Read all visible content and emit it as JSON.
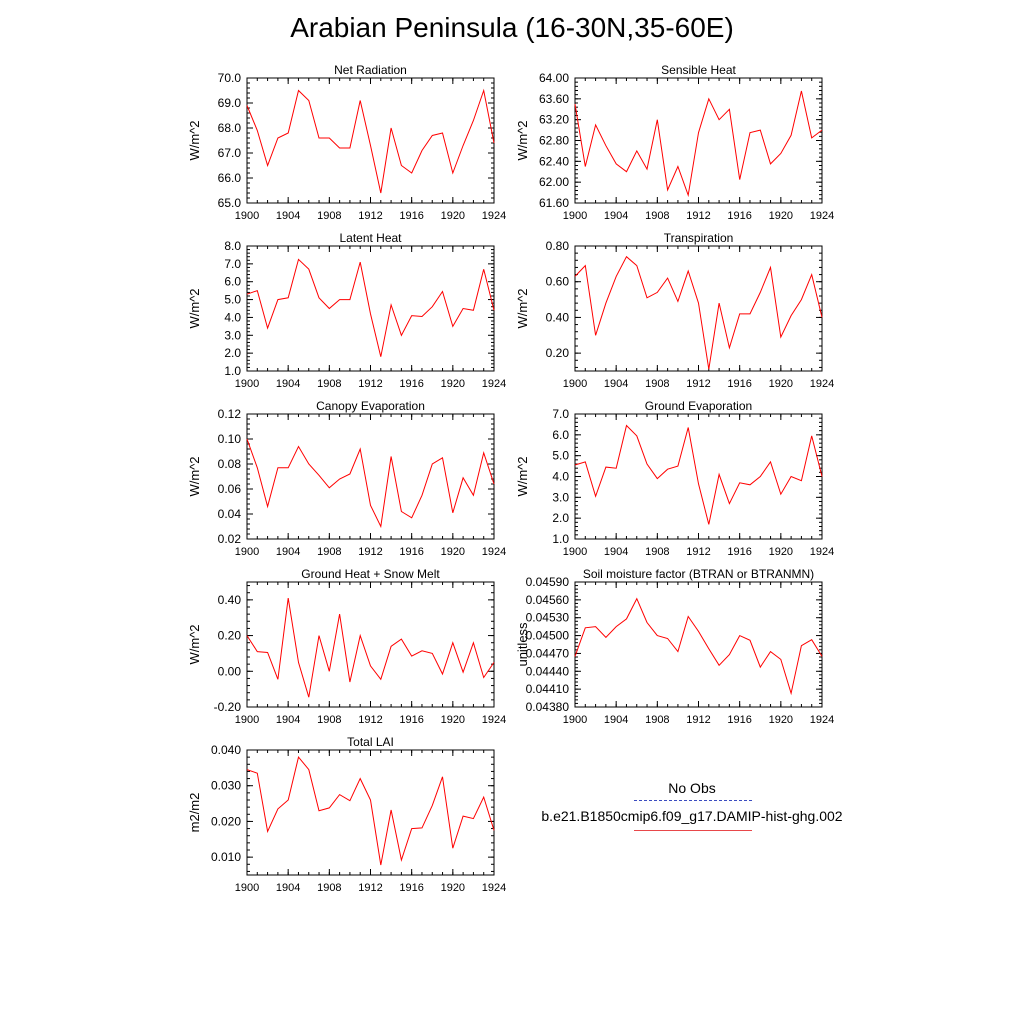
{
  "title": "Arabian Peninsula (16-30N,35-60E)",
  "legend": {
    "obs_label": "No Obs",
    "model_label": "b.e21.B1850cmip6.f09_g17.DAMIP-hist-ghg.002",
    "obs_color": "#3b4cc0",
    "model_color": "#ff0000"
  },
  "chart_data": [
    {
      "type": "line",
      "title": "Net Radiation",
      "ylabel": "W/m^2",
      "xlim": [
        1900,
        1924
      ],
      "ylim": [
        65.0,
        70.0
      ],
      "xticks": [
        1900,
        1904,
        1908,
        1912,
        1916,
        1920,
        1924
      ],
      "yticks": [
        "65.0",
        "66.0",
        "67.0",
        "68.0",
        "69.0",
        "70.0"
      ],
      "ytick_values": [
        65.0,
        66.0,
        67.0,
        68.0,
        69.0,
        70.0
      ],
      "x": [
        1900,
        1901,
        1902,
        1903,
        1904,
        1905,
        1906,
        1907,
        1908,
        1909,
        1910,
        1911,
        1912,
        1913,
        1914,
        1915,
        1916,
        1917,
        1918,
        1919,
        1920,
        1921,
        1922,
        1923,
        1924
      ],
      "series": [
        {
          "values": [
            68.9,
            67.9,
            66.5,
            67.6,
            67.8,
            69.5,
            69.1,
            67.6,
            67.6,
            67.2,
            67.2,
            69.1,
            67.3,
            65.4,
            68.0,
            66.5,
            66.2,
            67.1,
            67.7,
            67.8,
            66.2,
            67.3,
            68.3,
            69.5,
            67.4
          ]
        }
      ]
    },
    {
      "type": "line",
      "title": "Sensible Heat",
      "ylabel": "W/m^2",
      "xlim": [
        1900,
        1924
      ],
      "ylim": [
        61.6,
        64.0
      ],
      "xticks": [
        1900,
        1904,
        1908,
        1912,
        1916,
        1920,
        1924
      ],
      "yticks": [
        "61.60",
        "62.00",
        "62.40",
        "62.80",
        "63.20",
        "63.60",
        "64.00"
      ],
      "ytick_values": [
        61.6,
        62.0,
        62.4,
        62.8,
        63.2,
        63.6,
        64.0
      ],
      "x": [
        1900,
        1901,
        1902,
        1903,
        1904,
        1905,
        1906,
        1907,
        1908,
        1909,
        1910,
        1911,
        1912,
        1913,
        1914,
        1915,
        1916,
        1917,
        1918,
        1919,
        1920,
        1921,
        1922,
        1923,
        1924
      ],
      "series": [
        {
          "values": [
            63.5,
            62.3,
            63.1,
            62.7,
            62.35,
            62.2,
            62.6,
            62.25,
            63.2,
            61.85,
            62.3,
            61.75,
            62.95,
            63.6,
            63.2,
            63.4,
            62.05,
            62.95,
            63.0,
            62.35,
            62.55,
            62.9,
            63.75,
            62.85,
            63.0
          ]
        }
      ]
    },
    {
      "type": "line",
      "title": "Latent Heat",
      "ylabel": "W/m^2",
      "xlim": [
        1900,
        1924
      ],
      "ylim": [
        1.0,
        8.0
      ],
      "xticks": [
        1900,
        1904,
        1908,
        1912,
        1916,
        1920,
        1924
      ],
      "yticks": [
        "1.0",
        "2.0",
        "3.0",
        "4.0",
        "5.0",
        "6.0",
        "7.0",
        "8.0"
      ],
      "ytick_values": [
        1.0,
        2.0,
        3.0,
        4.0,
        5.0,
        6.0,
        7.0,
        8.0
      ],
      "x": [
        1900,
        1901,
        1902,
        1903,
        1904,
        1905,
        1906,
        1907,
        1908,
        1909,
        1910,
        1911,
        1912,
        1913,
        1914,
        1915,
        1916,
        1917,
        1918,
        1919,
        1920,
        1921,
        1922,
        1923,
        1924
      ],
      "series": [
        {
          "values": [
            5.3,
            5.5,
            3.4,
            5.0,
            5.1,
            7.25,
            6.7,
            5.1,
            4.5,
            5.0,
            5.0,
            7.1,
            4.2,
            1.8,
            4.7,
            3.0,
            4.1,
            4.05,
            4.6,
            5.45,
            3.5,
            4.5,
            4.4,
            6.7,
            4.4
          ]
        }
      ]
    },
    {
      "type": "line",
      "title": "Transpiration",
      "ylabel": "W/m^2",
      "xlim": [
        1900,
        1924
      ],
      "ylim": [
        0.1,
        0.8
      ],
      "xticks": [
        1900,
        1904,
        1908,
        1912,
        1916,
        1920,
        1924
      ],
      "yticks": [
        "0.20",
        "0.40",
        "0.60",
        "0.80"
      ],
      "ytick_values": [
        0.2,
        0.4,
        0.6,
        0.8
      ],
      "x": [
        1900,
        1901,
        1902,
        1903,
        1904,
        1905,
        1906,
        1907,
        1908,
        1909,
        1910,
        1911,
        1912,
        1913,
        1914,
        1915,
        1916,
        1917,
        1918,
        1919,
        1920,
        1921,
        1922,
        1923,
        1924
      ],
      "series": [
        {
          "values": [
            0.63,
            0.69,
            0.3,
            0.48,
            0.63,
            0.74,
            0.69,
            0.51,
            0.54,
            0.62,
            0.49,
            0.66,
            0.48,
            0.11,
            0.48,
            0.23,
            0.42,
            0.42,
            0.54,
            0.68,
            0.29,
            0.41,
            0.5,
            0.64,
            0.4
          ]
        }
      ]
    },
    {
      "type": "line",
      "title": "Canopy Evaporation",
      "ylabel": "W/m^2",
      "xlim": [
        1900,
        1924
      ],
      "ylim": [
        0.02,
        0.12
      ],
      "xticks": [
        1900,
        1904,
        1908,
        1912,
        1916,
        1920,
        1924
      ],
      "yticks": [
        "0.02",
        "0.04",
        "0.06",
        "0.08",
        "0.10",
        "0.12"
      ],
      "ytick_values": [
        0.02,
        0.04,
        0.06,
        0.08,
        0.1,
        0.12
      ],
      "x": [
        1900,
        1901,
        1902,
        1903,
        1904,
        1905,
        1906,
        1907,
        1908,
        1909,
        1910,
        1911,
        1912,
        1913,
        1914,
        1915,
        1916,
        1917,
        1918,
        1919,
        1920,
        1921,
        1922,
        1923,
        1924
      ],
      "series": [
        {
          "values": [
            0.1,
            0.077,
            0.046,
            0.077,
            0.077,
            0.094,
            0.08,
            0.071,
            0.061,
            0.068,
            0.072,
            0.092,
            0.047,
            0.03,
            0.086,
            0.042,
            0.037,
            0.055,
            0.08,
            0.085,
            0.041,
            0.069,
            0.055,
            0.089,
            0.064
          ]
        }
      ]
    },
    {
      "type": "line",
      "title": "Ground Evaporation",
      "ylabel": "W/m^2",
      "xlim": [
        1900,
        1924
      ],
      "ylim": [
        1.0,
        7.0
      ],
      "xticks": [
        1900,
        1904,
        1908,
        1912,
        1916,
        1920,
        1924
      ],
      "yticks": [
        "1.0",
        "2.0",
        "3.0",
        "4.0",
        "5.0",
        "6.0",
        "7.0"
      ],
      "ytick_values": [
        1.0,
        2.0,
        3.0,
        4.0,
        5.0,
        6.0,
        7.0
      ],
      "x": [
        1900,
        1901,
        1902,
        1903,
        1904,
        1905,
        1906,
        1907,
        1908,
        1909,
        1910,
        1911,
        1912,
        1913,
        1914,
        1915,
        1916,
        1917,
        1918,
        1919,
        1920,
        1921,
        1922,
        1923,
        1924
      ],
      "series": [
        {
          "values": [
            4.55,
            4.7,
            3.05,
            4.45,
            4.4,
            6.45,
            5.95,
            4.6,
            3.9,
            4.35,
            4.5,
            6.35,
            3.65,
            1.7,
            4.1,
            2.7,
            3.7,
            3.6,
            4.0,
            4.7,
            3.15,
            4.0,
            3.8,
            5.95,
            4.0
          ]
        }
      ]
    },
    {
      "type": "line",
      "title": "Ground Heat + Snow Melt",
      "ylabel": "W/m^2",
      "xlim": [
        1900,
        1924
      ],
      "ylim": [
        -0.2,
        0.5
      ],
      "xticks": [
        1900,
        1904,
        1908,
        1912,
        1916,
        1920,
        1924
      ],
      "yticks": [
        "-0.20",
        "0.00",
        "0.20",
        "0.40"
      ],
      "ytick_values": [
        -0.2,
        0.0,
        0.2,
        0.4
      ],
      "x": [
        1900,
        1901,
        1902,
        1903,
        1904,
        1905,
        1906,
        1907,
        1908,
        1909,
        1910,
        1911,
        1912,
        1913,
        1914,
        1915,
        1916,
        1917,
        1918,
        1919,
        1920,
        1921,
        1922,
        1923,
        1924
      ],
      "series": [
        {
          "values": [
            0.2,
            0.11,
            0.105,
            -0.045,
            0.41,
            0.05,
            -0.145,
            0.2,
            0.0,
            0.32,
            -0.06,
            0.2,
            0.03,
            -0.045,
            0.14,
            0.18,
            0.085,
            0.115,
            0.1,
            -0.015,
            0.16,
            -0.005,
            0.16,
            -0.035,
            0.05
          ]
        }
      ]
    },
    {
      "type": "line",
      "title": "Soil moisture factor (BTRAN or BTRANMN)",
      "ylabel": "unitless",
      "xlim": [
        1900,
        1924
      ],
      "ylim": [
        0.0438,
        0.0459
      ],
      "xticks": [
        1900,
        1904,
        1908,
        1912,
        1916,
        1920,
        1924
      ],
      "yticks": [
        "0.04380",
        "0.04410",
        "0.04440",
        "0.04470",
        "0.04500",
        "0.04530",
        "0.04560",
        "0.04590"
      ],
      "ytick_values": [
        0.0438,
        0.0441,
        0.0444,
        0.0447,
        0.045,
        0.0453,
        0.0456,
        0.0459
      ],
      "x": [
        1900,
        1901,
        1902,
        1903,
        1904,
        1905,
        1906,
        1907,
        1908,
        1909,
        1910,
        1911,
        1912,
        1913,
        1914,
        1915,
        1916,
        1917,
        1918,
        1919,
        1920,
        1921,
        1922,
        1923,
        1924
      ],
      "series": [
        {
          "values": [
            0.04465,
            0.04513,
            0.04515,
            0.04497,
            0.04515,
            0.04528,
            0.04562,
            0.04522,
            0.045,
            0.04495,
            0.04473,
            0.04532,
            0.04507,
            0.04478,
            0.0445,
            0.04468,
            0.045,
            0.04492,
            0.04447,
            0.04473,
            0.0446,
            0.04403,
            0.04483,
            0.04493,
            0.04465
          ]
        }
      ]
    },
    {
      "type": "line",
      "title": "Total LAI",
      "ylabel": "m2/m2",
      "xlim": [
        1900,
        1924
      ],
      "ylim": [
        0.005,
        0.04
      ],
      "xticks": [
        1900,
        1904,
        1908,
        1912,
        1916,
        1920,
        1924
      ],
      "yticks": [
        "0.010",
        "0.020",
        "0.030",
        "0.040"
      ],
      "ytick_values": [
        0.01,
        0.02,
        0.03,
        0.04
      ],
      "x": [
        1900,
        1901,
        1902,
        1903,
        1904,
        1905,
        1906,
        1907,
        1908,
        1909,
        1910,
        1911,
        1912,
        1913,
        1914,
        1915,
        1916,
        1917,
        1918,
        1919,
        1920,
        1921,
        1922,
        1923,
        1924
      ],
      "series": [
        {
          "values": [
            0.0345,
            0.0335,
            0.0172,
            0.0235,
            0.026,
            0.038,
            0.0345,
            0.023,
            0.0238,
            0.0275,
            0.0258,
            0.032,
            0.026,
            0.0078,
            0.0232,
            0.0092,
            0.018,
            0.0182,
            0.0245,
            0.0325,
            0.0125,
            0.0215,
            0.0208,
            0.0268,
            0.0175
          ]
        }
      ]
    }
  ]
}
